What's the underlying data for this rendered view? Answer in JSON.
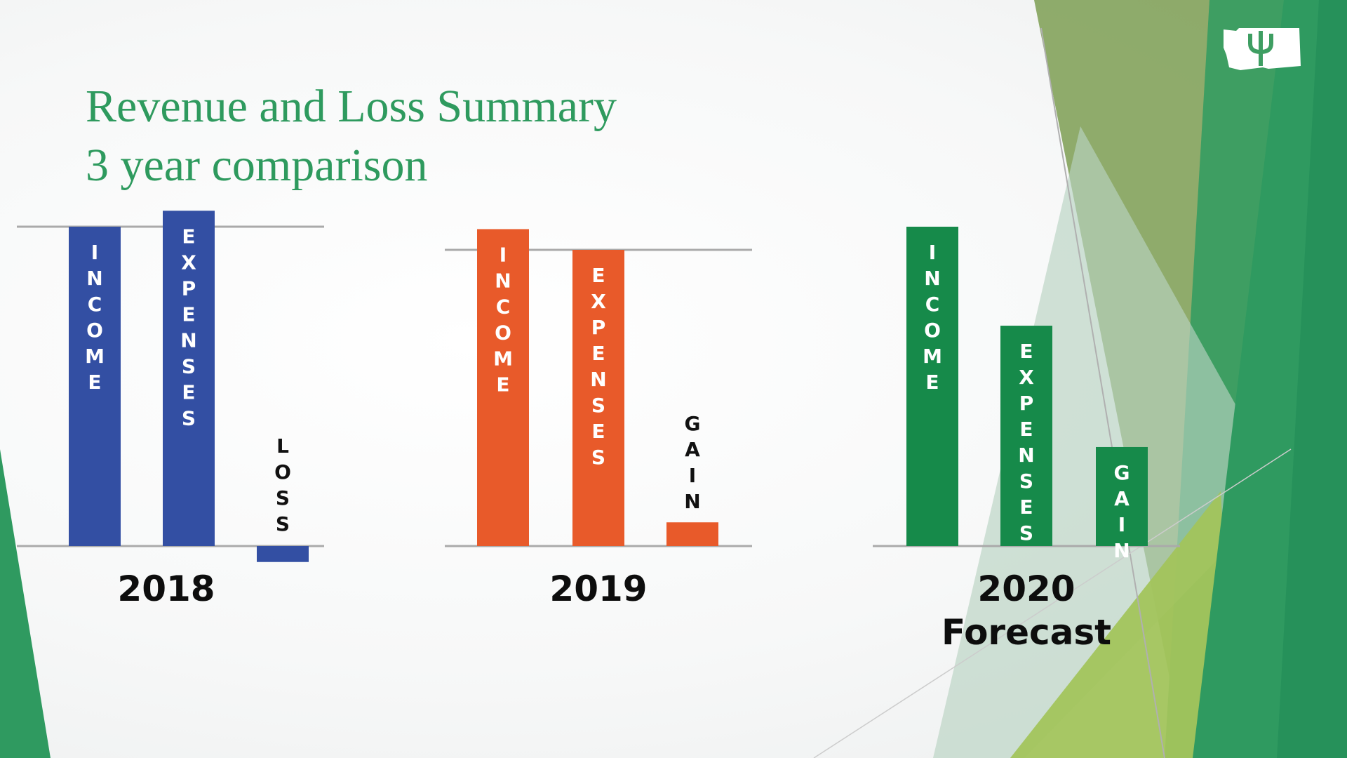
{
  "slide": {
    "title_line1": "Revenue and Loss Summary",
    "title_line2": "3 year comparison",
    "logo_icon": "washington-psi-logo-icon"
  },
  "colors": {
    "title": "#2e9a5e",
    "y2018": "#334fa3",
    "y2019": "#e85a2a",
    "y2020": "#168a4a",
    "gridline": "#aaaaaa"
  },
  "chart_data": [
    {
      "type": "bar",
      "year_label": "2018",
      "sub_label": "",
      "color": "#334fa3",
      "categories": [
        "INCOME",
        "EXPENSES",
        "LOSS"
      ],
      "values": [
        100,
        105,
        -5
      ],
      "reference_value": 100,
      "label_inside": [
        true,
        true,
        false
      ]
    },
    {
      "type": "bar",
      "year_label": "2019",
      "sub_label": "",
      "color": "#e85a2a",
      "categories": [
        "INCOME",
        "EXPENSES",
        "GAIN"
      ],
      "values": [
        107,
        100,
        8
      ],
      "reference_value": 100,
      "label_inside": [
        true,
        true,
        false
      ]
    },
    {
      "type": "bar",
      "year_label": "2020",
      "sub_label": "Forecast",
      "color": "#168a4a",
      "categories": [
        "INCOME",
        "EXPENSES",
        "GAIN"
      ],
      "values": [
        100,
        69,
        31
      ],
      "reference_value": null,
      "label_inside": [
        true,
        true,
        true
      ]
    }
  ]
}
